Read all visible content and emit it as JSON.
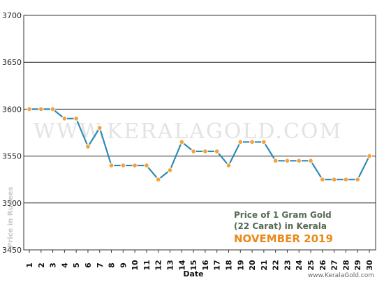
{
  "chart_data": {
    "type": "line",
    "x": [
      1,
      2,
      3,
      4,
      5,
      6,
      7,
      8,
      9,
      10,
      11,
      12,
      13,
      14,
      15,
      16,
      17,
      18,
      19,
      20,
      21,
      22,
      23,
      24,
      25,
      26,
      27,
      28,
      29,
      30
    ],
    "values": [
      3600,
      3600,
      3600,
      3590,
      3590,
      3560,
      3580,
      3540,
      3540,
      3540,
      3540,
      3525,
      3535,
      3565,
      3555,
      3555,
      3555,
      3540,
      3565,
      3565,
      3565,
      3545,
      3545,
      3545,
      3545,
      3525,
      3525,
      3525,
      3525,
      3550
    ],
    "xlabel": "Date",
    "ylabel": "Price in Rupees",
    "ylim": [
      3450,
      3700
    ],
    "yticks": [
      3450,
      3500,
      3550,
      3600,
      3650,
      3700
    ],
    "grid": true,
    "line_color": "#2f8bb5",
    "marker_color": "#f5a03a"
  },
  "info": {
    "line1": "Price of 1 Gram Gold",
    "line2": "(22 Carat) in Kerala",
    "period": "NOVEMBER 2019"
  },
  "watermark": "WWW.KERALAGOLD.COM",
  "credit": "www.KeralaGold.com"
}
